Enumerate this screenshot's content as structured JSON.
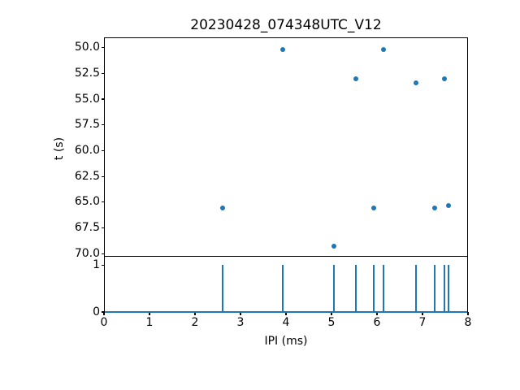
{
  "figure": {
    "title": "20230428_074348UTC_V12",
    "background_color": "#ffffff",
    "axis_color": "#000000",
    "accent_color": "#1f77b4"
  },
  "chart_data": [
    {
      "type": "scatter",
      "title": "20230428_074348UTC_V12",
      "ylabel": "t (s)",
      "xlim": [
        0,
        8
      ],
      "ylim": [
        49.0,
        70.3
      ],
      "y_inverted": true,
      "grid": false,
      "legend_position": "none",
      "marker_color": "#1f77b4",
      "yticks": [
        50.0,
        52.5,
        55.0,
        57.5,
        60.0,
        62.5,
        65.0,
        67.5,
        70.0
      ],
      "ytick_labels": [
        "50.0",
        "52.5",
        "55.0",
        "57.5",
        "60.0",
        "62.5",
        "65.0",
        "67.5",
        "70.0"
      ],
      "points": [
        {
          "x": 2.6,
          "y": 65.6
        },
        {
          "x": 3.93,
          "y": 50.2
        },
        {
          "x": 5.05,
          "y": 69.3
        },
        {
          "x": 5.53,
          "y": 53.0
        },
        {
          "x": 5.93,
          "y": 65.6
        },
        {
          "x": 6.14,
          "y": 50.2
        },
        {
          "x": 6.85,
          "y": 53.4
        },
        {
          "x": 7.26,
          "y": 65.6
        },
        {
          "x": 7.48,
          "y": 53.0
        },
        {
          "x": 7.58,
          "y": 65.3
        }
      ]
    },
    {
      "type": "vlines",
      "xlabel": "IPI (ms)",
      "xlim": [
        0,
        8
      ],
      "ylim": [
        0,
        1.18
      ],
      "grid": false,
      "line_color": "#1f77b4",
      "baseline_y": 0,
      "spike_height": 1,
      "xticks": [
        0,
        1,
        2,
        3,
        4,
        5,
        6,
        7,
        8
      ],
      "xtick_labels": [
        "0",
        "1",
        "2",
        "3",
        "4",
        "5",
        "6",
        "7",
        "8"
      ],
      "yticks": [
        1,
        0
      ],
      "ytick_labels": [
        "1",
        "0"
      ],
      "spikes_x": [
        2.6,
        3.93,
        5.05,
        5.53,
        5.93,
        6.14,
        6.85,
        7.26,
        7.48,
        7.58
      ]
    }
  ]
}
